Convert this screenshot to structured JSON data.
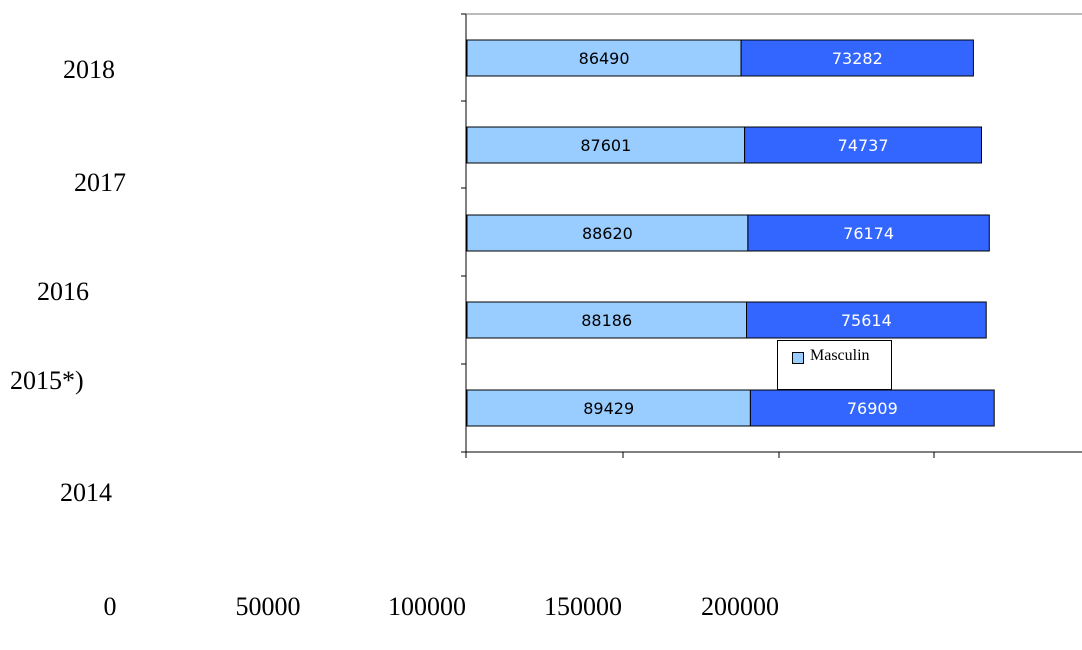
{
  "chart_data": {
    "type": "bar",
    "orientation": "horizontal",
    "stacked": true,
    "categories": [
      "2018",
      "2017",
      "2016",
      "2015*)",
      "2014"
    ],
    "series": [
      {
        "name": "Masculin",
        "values": [
          86490,
          87601,
          88620,
          88186,
          89429
        ],
        "color": "#99ccff"
      },
      {
        "values": [
          73282,
          74737,
          76174,
          75614,
          76909
        ],
        "color": "#3366ff"
      }
    ],
    "bar_labels": [
      [
        "86490",
        "87601",
        "88620",
        "88186",
        "89429"
      ],
      [
        "73282",
        "74737",
        "76174",
        "75614",
        "76909"
      ]
    ],
    "year_labels": [
      "2018",
      "2017",
      "2016",
      "2015*)",
      "2014"
    ],
    "x_tick_labels": [
      "0",
      "50000",
      "100000",
      "150000",
      "200000"
    ],
    "xlim": [
      0,
      200000
    ],
    "grid": false,
    "legend": {
      "entries": [
        "Masculin"
      ],
      "placement": "center"
    }
  }
}
